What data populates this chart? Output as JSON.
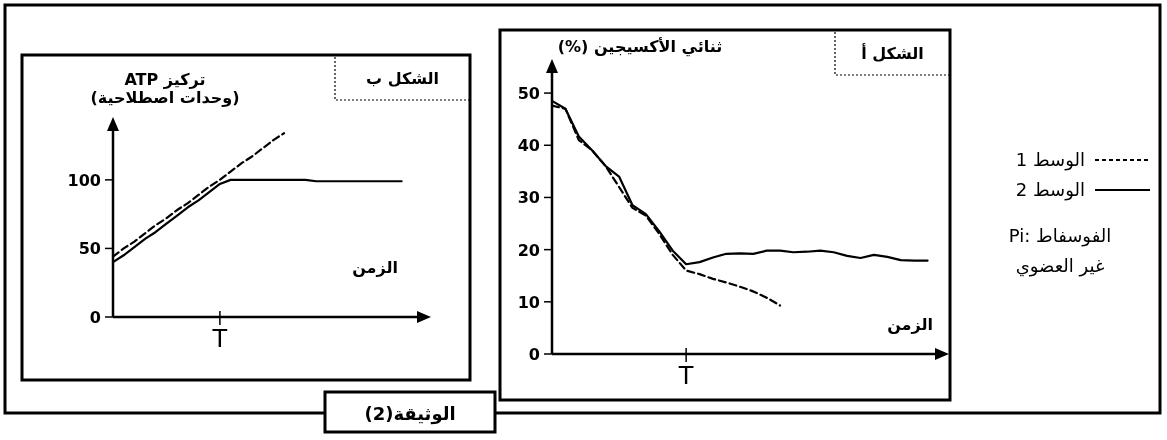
{
  "chart_data": [
    {
      "type": "line",
      "title": "الشكل أ",
      "ylabel": "ثنائي الأكسيجين (%)",
      "xlabel": "الزمن",
      "ylim": [
        0,
        55
      ],
      "yticks": [
        0,
        10,
        20,
        30,
        40,
        50
      ],
      "legend": "right",
      "annotations": [
        "Pi: الفوسفاط\nغير العضوي"
      ],
      "categories": [
        null,
        null,
        null,
        null,
        null,
        null,
        null,
        null,
        null,
        null,
        "T",
        null,
        null,
        null,
        null,
        null,
        null,
        null,
        null,
        null,
        null,
        null,
        null,
        null,
        null,
        null,
        null,
        null,
        null,
        null
      ],
      "series": [
        {
          "name": "الوسط 1",
          "color": "#000000",
          "line_style": "dashed",
          "values": [
            47.6,
            47,
            41,
            39,
            36,
            32,
            28,
            26.5,
            23,
            19,
            16,
            15.3,
            14.4,
            13.7,
            12.9,
            12,
            10.8,
            9.3,
            null,
            null,
            null,
            null,
            null,
            null,
            null,
            null,
            null,
            null,
            null,
            null
          ]
        },
        {
          "name": "الوسط 2",
          "color": "#000000",
          "line_style": "solid",
          "values": [
            48.5,
            47,
            41.7,
            39,
            36,
            34,
            28.5,
            26.8,
            23.5,
            19.8,
            17.2,
            17.6,
            18.5,
            19.2,
            19.3,
            19.2,
            19.8,
            19.8,
            19.5,
            19.6,
            19.8,
            19.5,
            18.8,
            18.4,
            19,
            18.6,
            18,
            17.9,
            17.9,
            null
          ]
        }
      ]
    },
    {
      "type": "line",
      "title": "الشكل ب",
      "ylabel": "تركيز ATP\n(وحدات اصطلاحية)",
      "xlabel": "الزمن",
      "ylim": [
        0,
        140
      ],
      "yticks": [
        0,
        50,
        100
      ],
      "annotations": [
        "الوثيقة(2)"
      ],
      "categories": [
        null,
        null,
        null,
        null,
        null,
        null,
        null,
        null,
        null,
        null,
        "T",
        null,
        null,
        null,
        null,
        null,
        null,
        null,
        null,
        null,
        null,
        null,
        null,
        null,
        null,
        null,
        null,
        null,
        null,
        null
      ],
      "series": [
        {
          "color": "#000000",
          "line_style": "dashed",
          "values": [
            44,
            50,
            55,
            61,
            67,
            72,
            78,
            83,
            89,
            95,
            100,
            106,
            112,
            117,
            123,
            129,
            134,
            null,
            null,
            null,
            null,
            null,
            null,
            null,
            null,
            null,
            null,
            null,
            null,
            null
          ]
        },
        {
          "color": "#000000",
          "line_style": "solid",
          "values": [
            40,
            45,
            51,
            57,
            62,
            68,
            74,
            80,
            85,
            91,
            97,
            100,
            100,
            100,
            100,
            100,
            100,
            100,
            100,
            99,
            99,
            99,
            99,
            99,
            99,
            99,
            99,
            99,
            null,
            null
          ]
        }
      ]
    }
  ]
}
